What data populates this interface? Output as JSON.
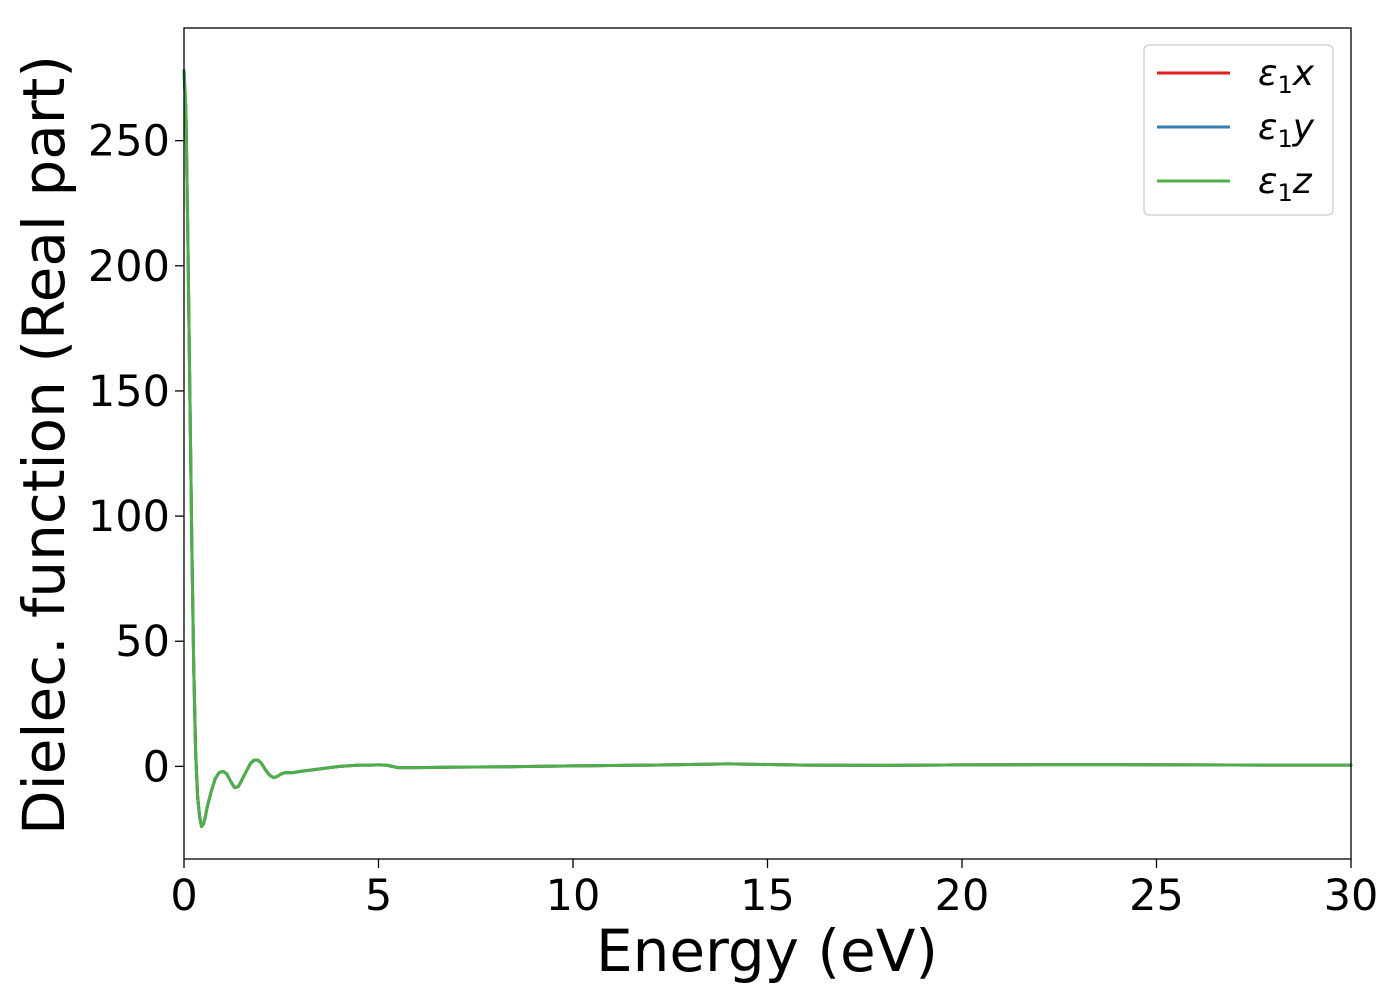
{
  "chart_data": {
    "type": "line",
    "xlabel": "Energy (eV)",
    "ylabel": "Dielec. function (Real part)",
    "xlim": [
      0,
      30
    ],
    "ylim": [
      -37,
      295
    ],
    "xticks": [
      0,
      5,
      10,
      15,
      20,
      25,
      30
    ],
    "yticks": [
      0,
      50,
      100,
      150,
      200,
      250
    ],
    "grid": false,
    "legend_position": "top-right",
    "series": [
      {
        "name": "ε1x",
        "color": "#e41a1c",
        "x": [
          0,
          0.05,
          0.1,
          0.15,
          0.2,
          0.25,
          0.3,
          0.35,
          0.4,
          0.45,
          0.5,
          0.55,
          0.6,
          0.7,
          0.8,
          0.9,
          1.0,
          1.1,
          1.2,
          1.3,
          1.4,
          1.5,
          1.6,
          1.7,
          1.8,
          1.9,
          2.0,
          2.1,
          2.2,
          2.3,
          2.4,
          2.5,
          2.6,
          2.8,
          3.0,
          3.5,
          4.0,
          4.5,
          4.8,
          5.0,
          5.2,
          5.5,
          6.0,
          7.0,
          8.0,
          10.0,
          12.0,
          14.0,
          16.0,
          18.0,
          20.0,
          22.0,
          24.0,
          26.0,
          28.0,
          30.0
        ],
        "y": [
          278,
          262,
          210,
          150,
          90,
          40,
          5,
          -12,
          -20,
          -24,
          -23,
          -20,
          -16,
          -10,
          -5,
          -2.5,
          -2,
          -3,
          -6,
          -8.5,
          -8,
          -5,
          -2,
          1,
          2.5,
          2.5,
          1,
          -1.5,
          -3.5,
          -4.5,
          -4,
          -3,
          -2.5,
          -2.5,
          -2,
          -1,
          0,
          0.5,
          0.5,
          0.6,
          0.5,
          -0.5,
          -0.5,
          -0.3,
          -0.2,
          0.2,
          0.5,
          1.0,
          0.5,
          0.4,
          0.6,
          0.7,
          0.7,
          0.6,
          0.5,
          0.5
        ]
      },
      {
        "name": "ε1y",
        "color": "#377eb8",
        "x": [
          0,
          0.05,
          0.1,
          0.15,
          0.2,
          0.25,
          0.3,
          0.35,
          0.4,
          0.45,
          0.5,
          0.55,
          0.6,
          0.7,
          0.8,
          0.9,
          1.0,
          1.1,
          1.2,
          1.3,
          1.4,
          1.5,
          1.6,
          1.7,
          1.8,
          1.9,
          2.0,
          2.1,
          2.2,
          2.3,
          2.4,
          2.5,
          2.6,
          2.8,
          3.0,
          3.5,
          4.0,
          4.5,
          4.8,
          5.0,
          5.2,
          5.5,
          6.0,
          7.0,
          8.0,
          10.0,
          12.0,
          14.0,
          16.0,
          18.0,
          20.0,
          22.0,
          24.0,
          26.0,
          28.0,
          30.0
        ],
        "y": [
          278,
          262,
          210,
          150,
          90,
          40,
          5,
          -12,
          -20,
          -24,
          -23,
          -20,
          -16,
          -10,
          -5,
          -2.5,
          -2,
          -3,
          -6,
          -8.5,
          -8,
          -5,
          -2,
          1,
          2.5,
          2.5,
          1,
          -1.5,
          -3.5,
          -4.5,
          -4,
          -3,
          -2.5,
          -2.5,
          -2,
          -1,
          0,
          0.5,
          0.5,
          0.6,
          0.5,
          -0.5,
          -0.5,
          -0.3,
          -0.2,
          0.2,
          0.5,
          1.0,
          0.5,
          0.4,
          0.6,
          0.7,
          0.7,
          0.6,
          0.5,
          0.5
        ]
      },
      {
        "name": "ε1z",
        "color": "#4daf4a",
        "x": [
          0,
          0.05,
          0.1,
          0.15,
          0.2,
          0.25,
          0.3,
          0.35,
          0.4,
          0.45,
          0.5,
          0.55,
          0.6,
          0.7,
          0.8,
          0.9,
          1.0,
          1.1,
          1.2,
          1.3,
          1.4,
          1.5,
          1.6,
          1.7,
          1.8,
          1.9,
          2.0,
          2.1,
          2.2,
          2.3,
          2.4,
          2.5,
          2.6,
          2.8,
          3.0,
          3.5,
          4.0,
          4.5,
          4.8,
          5.0,
          5.2,
          5.5,
          6.0,
          7.0,
          8.0,
          10.0,
          12.0,
          14.0,
          16.0,
          18.0,
          20.0,
          22.0,
          24.0,
          26.0,
          28.0,
          30.0
        ],
        "y": [
          278,
          262,
          210,
          150,
          90,
          40,
          5,
          -12,
          -20,
          -24,
          -23,
          -20,
          -16,
          -10,
          -5,
          -2.5,
          -2,
          -3,
          -6,
          -8.5,
          -8,
          -5,
          -2,
          1,
          2.5,
          2.5,
          1,
          -1.5,
          -3.5,
          -4.5,
          -4,
          -3,
          -2.5,
          -2.5,
          -2,
          -1,
          0,
          0.5,
          0.5,
          0.6,
          0.5,
          -0.5,
          -0.5,
          -0.3,
          -0.2,
          0.2,
          0.5,
          1.0,
          0.5,
          0.4,
          0.6,
          0.7,
          0.7,
          0.6,
          0.5,
          0.5
        ]
      }
    ]
  }
}
